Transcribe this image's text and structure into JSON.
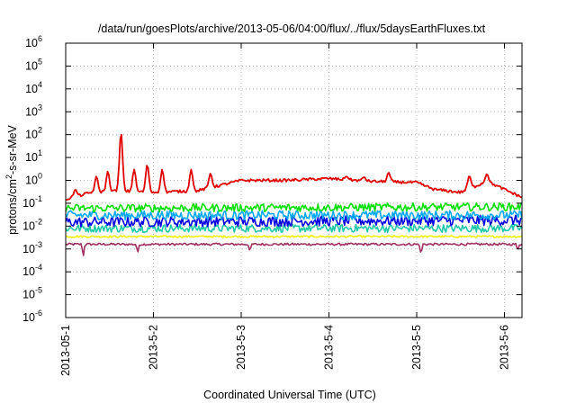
{
  "chart_data": {
    "type": "line",
    "title": "/data/run/goesPlots/archive/2013-05-06/04:00/flux/../flux/5daysEarthFluxes.txt",
    "xlabel": "Coordinated Universal Time (UTC)",
    "ylabel": {
      "main": "protons/cm",
      "sup": "2",
      "rest": "-s-sr-MeV"
    },
    "x_ticks": [
      "2013-05-1",
      "2013-5-2",
      "2013-5-3",
      "2013-5-4",
      "2013-5-5",
      "2013-5-6"
    ],
    "xlim_days": [
      0,
      5.2
    ],
    "y_scale": "log",
    "ylim_exp": [
      -6,
      6
    ],
    "y_tick_base": "10",
    "y_tick_exponents": [
      "-6",
      "-5",
      "-4",
      "-3",
      "-2",
      "-1",
      "0",
      "1",
      "2",
      "3",
      "4",
      "5",
      "6"
    ],
    "grid": true,
    "series": [
      {
        "color": "#e00000",
        "baseline": [
          [
            0,
            0.15
          ],
          [
            0.3,
            0.3
          ],
          [
            0.6,
            0.35
          ],
          [
            1.0,
            0.3
          ],
          [
            1.5,
            0.35
          ],
          [
            2.0,
            1.0
          ],
          [
            2.5,
            1.0
          ],
          [
            3.0,
            1.2
          ],
          [
            3.5,
            0.9
          ],
          [
            4.0,
            0.8
          ],
          [
            4.2,
            0.4
          ],
          [
            4.5,
            0.3
          ],
          [
            4.8,
            0.9
          ],
          [
            5.0,
            0.4
          ],
          [
            5.2,
            0.18
          ]
        ],
        "spikes": [
          [
            0.11,
            0.4
          ],
          [
            0.35,
            1.5
          ],
          [
            0.48,
            2.5
          ],
          [
            0.63,
            130
          ],
          [
            0.78,
            3
          ],
          [
            0.93,
            5
          ],
          [
            1.1,
            3
          ],
          [
            1.43,
            3
          ],
          [
            1.65,
            2
          ],
          [
            3.2,
            1.5
          ],
          [
            3.4,
            1.4
          ],
          [
            3.68,
            2.2
          ],
          [
            4.28,
            0.3
          ],
          [
            4.6,
            1.6
          ],
          [
            4.8,
            1.9
          ]
        ],
        "jitter": 0.12
      },
      {
        "color": "#00dd00",
        "baseline": [
          [
            0,
            0.06
          ],
          [
            5.2,
            0.07
          ]
        ],
        "jitter": 0.35
      },
      {
        "color": "#00a8f0",
        "baseline": [
          [
            0,
            0.03
          ],
          [
            5.2,
            0.03
          ]
        ],
        "jitter": 0.4
      },
      {
        "color": "#0000e0",
        "baseline": [
          [
            0,
            0.015
          ],
          [
            5.2,
            0.018
          ]
        ],
        "jitter": 0.45
      },
      {
        "color": "#20c8a8",
        "baseline": [
          [
            0,
            0.008
          ],
          [
            5.2,
            0.008
          ]
        ],
        "jitter": 0.35
      },
      {
        "color": "#f0f000",
        "baseline": [
          [
            0,
            0.0035
          ],
          [
            5.2,
            0.0035
          ]
        ],
        "jitter": 0.08
      },
      {
        "color": "#a03060",
        "baseline": [
          [
            0,
            0.0016
          ],
          [
            5.2,
            0.0016
          ]
        ],
        "jitter": 0.1,
        "dips": [
          [
            0.2,
            0.0005
          ],
          [
            0.82,
            0.0007
          ],
          [
            2.1,
            0.0008
          ],
          [
            4.05,
            0.0006
          ],
          [
            5.15,
            0.0009
          ]
        ]
      }
    ]
  }
}
